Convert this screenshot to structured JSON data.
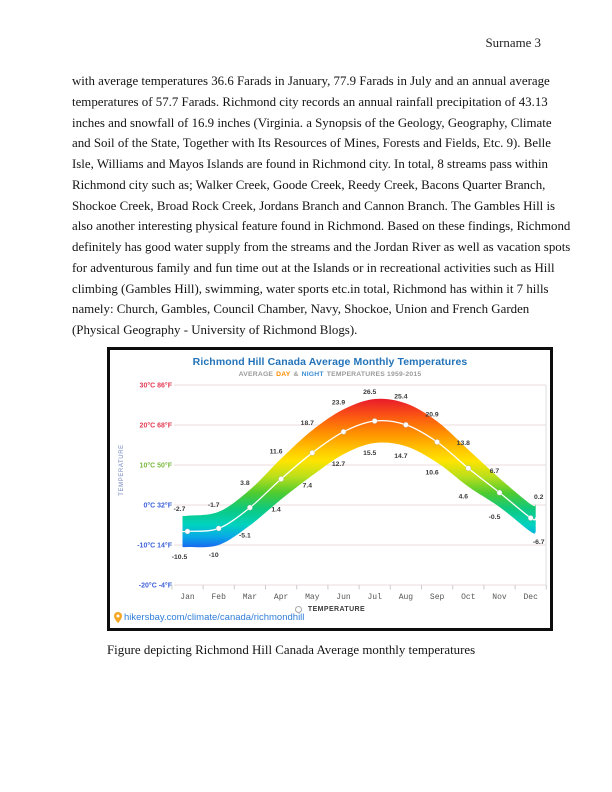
{
  "page": {
    "header": "Surname 3",
    "body_lines": [
      "with average temperatures 36.6 Farads in January, 77.9 Farads in July and an annual average",
      "temperatures of 57.7 Farads.  Richmond city records an annual rainfall precipitation of 43.13",
      "inches and snowfall of 16.9 inches (Virginia. a Synopsis of the Geology, Geography, Climate",
      "and Soil of the State, Together with Its Resources of Mines, Forests and Fields, Etc. 9). Belle",
      "Isle, Williams and Mayos Islands are found in Richmond city. In total, 8 streams pass within",
      "Richmond city such as; Walker Creek, Goode Creek, Reedy Creek, Bacons Quarter Branch,",
      "Shockoe Creek, Broad Rock Creek, Jordans Branch and Cannon Branch. The Gambles Hill is",
      "also another interesting physical feature found in Richmond. Based on these findings, Richmond",
      "definitely has good water supply from the streams and the Jordan River as well as vacation spots",
      "for adventurous family and fun time out at the Islands or in recreational activities such as Hill",
      "climbing (Gambles Hill), swimming, water sports etc.in total, Richmond has within it 7 hills",
      "namely: Church, Gambles, Council Chamber, Navy, Shockoe, Union and French Garden",
      "(Physical Geography - University of Richmond Blogs)."
    ],
    "caption": "Figure depicting Richmond Hill Canada Average monthly temperatures"
  },
  "chart_data": {
    "type": "area",
    "title": "Richmond Hill Canada Average Monthly Temperatures",
    "subtitle": {
      "prefix": "AVERAGE",
      "day": "DAY",
      "amp": "&",
      "night": "NIGHT",
      "suffix": "TEMPERATURES 1959-2015"
    },
    "ylabel": "TEMPERATURE",
    "legend": "TEMPERATURE",
    "source_link": "hikersbay.com/climate/canada/richmondhill",
    "categories": [
      "Jan",
      "Feb",
      "Mar",
      "Apr",
      "May",
      "Jun",
      "Jul",
      "Aug",
      "Sep",
      "Oct",
      "Nov",
      "Dec"
    ],
    "series": [
      {
        "name": "day",
        "values": [
          -2.7,
          -1.7,
          3.8,
          11.6,
          18.7,
          23.9,
          26.5,
          25.4,
          20.9,
          13.8,
          6.7,
          0.2
        ]
      },
      {
        "name": "night",
        "values": [
          -10.5,
          -10,
          -5.1,
          1.4,
          7.4,
          12.7,
          15.5,
          14.7,
          10.6,
          4.6,
          -0.5,
          -6.7
        ]
      }
    ],
    "average_line_shown": true,
    "ylim": [
      -20,
      30
    ],
    "grid": true,
    "legend_position": "bottom",
    "y_ticks": [
      {
        "label": "30°C 86°F",
        "value": 30,
        "color": "#e23b55"
      },
      {
        "label": "20°C 68°F",
        "value": 20,
        "color": "#e23b55"
      },
      {
        "label": "10°C 50°F",
        "value": 10,
        "color": "#7cb93e"
      },
      {
        "label": "0°C 32°F",
        "value": 0,
        "color": "#3e62d9"
      },
      {
        "label": "-10°C 14°F",
        "value": -10,
        "color": "#3e62d9"
      },
      {
        "label": "-20°C -4°F",
        "value": -20,
        "color": "#3e62d9"
      }
    ],
    "gradient_stops": [
      [
        27,
        "#e8142d"
      ],
      [
        22,
        "#fb5a12"
      ],
      [
        18,
        "#ff9000"
      ],
      [
        14,
        "#ffc400"
      ],
      [
        11,
        "#ffe400"
      ],
      [
        7,
        "#b8df1c"
      ],
      [
        3,
        "#4ecb2f"
      ],
      [
        -1,
        "#0ec97e"
      ],
      [
        -5,
        "#00d2c0"
      ],
      [
        -8,
        "#08a8e8"
      ],
      [
        -11,
        "#1d5ef0"
      ]
    ],
    "colors": {
      "title": "#2273b9",
      "grid": "#eedcdc",
      "axis_text": "#565656",
      "value_label": "#3a3a3a",
      "ylabel_text": "#7186c2",
      "line": "#ffffff",
      "link": "#2f7ed8",
      "pin": "#f5a623"
    }
  }
}
